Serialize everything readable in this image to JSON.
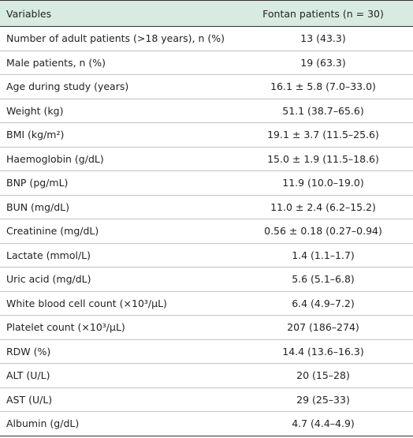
{
  "table": {
    "header": [
      "Variables",
      "Fontan patients (n = 30)"
    ],
    "rows": [
      [
        "Number of adult patients (>18 years), n (%)",
        "13 (43.3)"
      ],
      [
        "Male patients, n (%)",
        "19 (63.3)"
      ],
      [
        "Age during study (years)",
        "16.1 ± 5.8 (7.0–33.0)"
      ],
      [
        "Weight (kg)",
        "51.1 (38.7–65.6)"
      ],
      [
        "BMI (kg/m²)",
        "19.1 ± 3.7 (11.5–25.6)"
      ],
      [
        "Haemoglobin (g/dL)",
        "15.0 ± 1.9 (11.5–18.6)"
      ],
      [
        "BNP (pg/mL)",
        "11.9 (10.0–19.0)"
      ],
      [
        "BUN (mg/dL)",
        "11.0 ± 2.4 (6.2–15.2)"
      ],
      [
        "Creatinine (mg/dL)",
        "0.56 ± 0.18 (0.27–0.94)"
      ],
      [
        "Lactate (mmol/L)",
        "1.4 (1.1–1.7)"
      ],
      [
        "Uric acid (mg/dL)",
        "5.6 (5.1–6.8)"
      ],
      [
        "White blood cell count (×10³/μL)",
        "6.4 (4.9–7.2)"
      ],
      [
        "Platelet count (×10³/μL)",
        "207 (186–274)"
      ],
      [
        "RDW (%)",
        "14.4 (13.6–16.3)"
      ],
      [
        "ALT (U/L)",
        "20 (15–28)"
      ],
      [
        "AST (U/L)",
        "29 (25–33)"
      ],
      [
        "Albumin (g/dL)",
        "4.7 (4.4–4.9)"
      ]
    ]
  }
}
